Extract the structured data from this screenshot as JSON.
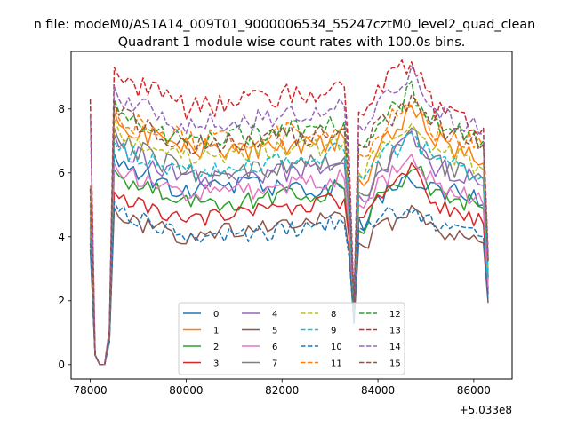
{
  "chart_data": {
    "type": "line",
    "suptitle": "n file: modeM0/AS1A14_009T01_9000006534_55247cztM0_level2_quad_clean",
    "title": "Quadrant 1 module wise count rates with 100.0s bins.",
    "xlabel": "",
    "ylabel": "",
    "x_offset_label": "+5.033e8",
    "xlim": [
      77600,
      86800
    ],
    "ylim": [
      -0.45,
      9.8
    ],
    "xticks": [
      78000,
      80000,
      82000,
      84000,
      86000
    ],
    "xtick_labels": [
      "78000",
      "80000",
      "82000",
      "84000",
      "86000"
    ],
    "yticks": [
      0,
      2,
      4,
      6,
      8
    ],
    "ytick_labels": [
      "0",
      "2",
      "4",
      "6",
      "8"
    ],
    "legend_position": "lower center",
    "key_x": [
      78000,
      78100,
      78200,
      78300,
      78400,
      78500,
      78600,
      80000,
      81000,
      82000,
      83000,
      83350,
      83500,
      83600,
      83700,
      84000,
      84200,
      84500,
      84700,
      85200,
      86000,
      86200,
      86350
    ],
    "series": [
      {
        "name": "0",
        "color": "#1f77b4",
        "dash": "solid",
        "baseline": 5.4,
        "values": [
          4.3,
          0.3,
          0.0,
          0.0,
          0.8,
          6.6,
          6.2,
          5.4,
          5.6,
          5.6,
          5.5,
          5.5,
          1.5,
          4.6,
          4.2,
          5.2,
          5.4,
          5.6,
          5.8,
          5.5,
          5.2,
          5.0,
          1.1
        ]
      },
      {
        "name": "1",
        "color": "#ff7f0e",
        "dash": "solid",
        "baseline": 6.6,
        "values": [
          5.0,
          0.3,
          0.0,
          0.0,
          0.9,
          7.9,
          7.5,
          6.8,
          6.6,
          6.8,
          7.0,
          7.1,
          1.7,
          5.8,
          5.6,
          6.8,
          7.0,
          7.6,
          8.0,
          7.0,
          6.5,
          6.3,
          1.3
        ]
      },
      {
        "name": "2",
        "color": "#2ca02c",
        "dash": "solid",
        "baseline": 5.2,
        "values": [
          4.1,
          0.3,
          0.0,
          0.0,
          0.8,
          6.1,
          5.9,
          5.0,
          5.1,
          5.3,
          5.4,
          5.5,
          1.4,
          4.2,
          4.1,
          5.2,
          5.4,
          5.8,
          6.3,
          5.4,
          5.0,
          4.9,
          1.1
        ]
      },
      {
        "name": "3",
        "color": "#d62728",
        "dash": "solid",
        "baseline": 4.7,
        "values": [
          4.0,
          0.3,
          0.0,
          0.0,
          0.8,
          5.4,
          5.2,
          4.6,
          4.7,
          4.9,
          5.1,
          5.2,
          1.4,
          4.6,
          4.6,
          5.3,
          5.6,
          5.9,
          6.1,
          5.0,
          4.6,
          4.4,
          1.1
        ]
      },
      {
        "name": "4",
        "color": "#9467bd",
        "dash": "solid",
        "baseline": 5.8,
        "values": [
          4.5,
          0.3,
          0.0,
          0.0,
          0.9,
          7.2,
          6.8,
          5.8,
          5.8,
          6.0,
          6.2,
          6.3,
          1.6,
          5.3,
          5.1,
          6.0,
          6.2,
          6.8,
          7.2,
          6.2,
          5.8,
          5.6,
          1.2
        ]
      },
      {
        "name": "5",
        "color": "#8c564b",
        "dash": "solid",
        "baseline": 4.2,
        "values": [
          3.6,
          0.3,
          0.0,
          0.0,
          0.7,
          4.9,
          4.6,
          4.0,
          4.2,
          4.4,
          4.6,
          4.6,
          1.3,
          3.8,
          3.7,
          4.2,
          4.4,
          4.6,
          4.8,
          4.2,
          4.0,
          3.8,
          1.0
        ]
      },
      {
        "name": "6",
        "color": "#e377c2",
        "dash": "solid",
        "baseline": 5.3,
        "values": [
          4.2,
          0.3,
          0.0,
          0.0,
          0.8,
          6.3,
          6.0,
          5.3,
          5.4,
          5.6,
          5.8,
          5.8,
          1.5,
          5.0,
          4.9,
          5.6,
          5.8,
          6.2,
          6.6,
          5.6,
          5.2,
          5.0,
          1.1
        ]
      },
      {
        "name": "7",
        "color": "#7f7f7f",
        "dash": "solid",
        "baseline": 6.0,
        "values": [
          4.6,
          0.3,
          0.0,
          0.0,
          0.9,
          7.4,
          7.0,
          6.0,
          6.0,
          6.2,
          6.4,
          6.5,
          1.6,
          5.4,
          5.3,
          6.2,
          6.4,
          6.9,
          7.3,
          6.3,
          6.0,
          5.8,
          1.2
        ]
      },
      {
        "name": "8",
        "color": "#bcbd22",
        "dash": "dashed",
        "baseline": 6.5,
        "values": [
          5.0,
          0.3,
          0.0,
          0.0,
          0.9,
          7.7,
          7.3,
          6.5,
          6.6,
          6.8,
          6.9,
          7.0,
          1.7,
          6.0,
          5.8,
          6.7,
          6.9,
          7.4,
          7.8,
          6.7,
          6.3,
          6.1,
          1.3
        ]
      },
      {
        "name": "9",
        "color": "#17becf",
        "dash": "dashed",
        "baseline": 6.2,
        "values": [
          4.8,
          0.3,
          0.0,
          0.0,
          0.9,
          7.0,
          6.7,
          6.1,
          6.2,
          6.4,
          6.6,
          6.7,
          1.6,
          5.9,
          5.8,
          6.5,
          6.6,
          6.9,
          7.2,
          6.4,
          6.1,
          5.9,
          1.2
        ]
      },
      {
        "name": "10",
        "color": "#1f77b4",
        "dash": "dashed",
        "baseline": 4.0,
        "values": [
          3.8,
          0.3,
          0.0,
          0.0,
          0.7,
          5.1,
          4.8,
          4.0,
          4.0,
          4.2,
          4.4,
          4.4,
          1.3,
          4.3,
          4.2,
          4.6,
          4.7,
          4.8,
          4.9,
          4.4,
          4.2,
          4.0,
          1.0
        ]
      },
      {
        "name": "11",
        "color": "#ff7f0e",
        "dash": "dashed",
        "baseline": 7.0,
        "values": [
          5.6,
          0.3,
          0.0,
          0.0,
          1.0,
          8.1,
          7.7,
          7.0,
          7.0,
          7.2,
          7.4,
          7.5,
          1.8,
          6.6,
          6.5,
          7.3,
          7.5,
          8.0,
          8.4,
          7.3,
          7.0,
          6.8,
          1.4
        ]
      },
      {
        "name": "12",
        "color": "#2ca02c",
        "dash": "dashed",
        "baseline": 6.9,
        "values": [
          5.5,
          0.3,
          0.0,
          0.0,
          1.0,
          8.3,
          7.9,
          7.0,
          7.1,
          7.3,
          7.5,
          7.6,
          1.8,
          6.9,
          6.8,
          7.6,
          7.8,
          8.2,
          8.6,
          7.6,
          7.2,
          7.0,
          1.4
        ]
      },
      {
        "name": "13",
        "color": "#d62728",
        "dash": "dashed",
        "baseline": 7.8,
        "values": [
          8.3,
          0.3,
          0.0,
          0.0,
          1.1,
          9.3,
          9.0,
          8.0,
          8.2,
          8.4,
          8.6,
          8.7,
          2.0,
          7.9,
          7.8,
          8.8,
          9.0,
          9.3,
          9.5,
          8.0,
          7.6,
          7.4,
          1.5
        ]
      },
      {
        "name": "14",
        "color": "#9467bd",
        "dash": "dashed",
        "baseline": 7.5,
        "values": [
          7.8,
          0.3,
          0.0,
          0.0,
          1.1,
          8.7,
          8.3,
          7.5,
          7.6,
          7.8,
          8.0,
          8.1,
          1.9,
          7.5,
          7.3,
          8.0,
          8.3,
          8.9,
          9.2,
          7.8,
          7.4,
          7.2,
          1.4
        ]
      },
      {
        "name": "15",
        "color": "#8c564b",
        "dash": "dashed",
        "baseline": 6.8,
        "values": [
          5.5,
          0.3,
          0.0,
          0.0,
          1.0,
          8.2,
          7.8,
          6.9,
          6.9,
          7.1,
          7.3,
          7.4,
          1.8,
          6.9,
          6.8,
          7.4,
          7.6,
          8.0,
          8.4,
          7.4,
          7.0,
          6.9,
          1.4
        ]
      }
    ]
  }
}
